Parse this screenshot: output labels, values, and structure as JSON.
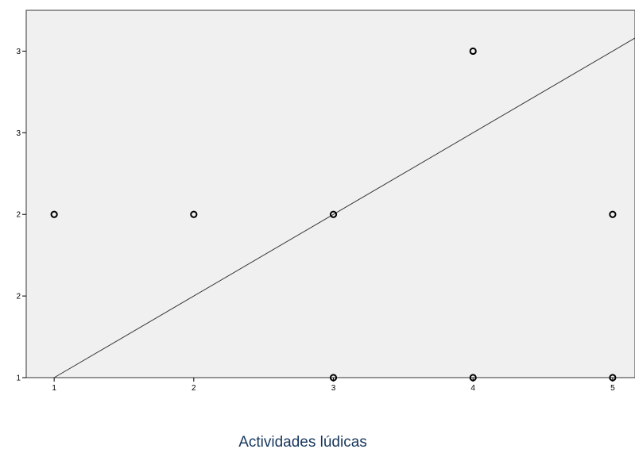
{
  "chart_data": {
    "type": "scatter",
    "xlabel": "Actividades lúdicas",
    "ylabel": "",
    "xlim": [
      0.8,
      5.16
    ],
    "ylim": [
      1,
      3.25
    ],
    "x_ticks": [
      1,
      2,
      3,
      4,
      5
    ],
    "x_tick_labels": [
      "1",
      "2",
      "3",
      "4",
      "5"
    ],
    "y_ticks": [
      1,
      1.5,
      2,
      2.5,
      3
    ],
    "y_tick_labels": [
      "1",
      "2",
      "2",
      "3",
      "3"
    ],
    "grid": false,
    "series": [
      {
        "points": [
          {
            "x": 1,
            "y": 2
          },
          {
            "x": 2,
            "y": 2
          },
          {
            "x": 3,
            "y": 2
          },
          {
            "x": 4,
            "y": 3
          },
          {
            "x": 5,
            "y": 2
          },
          {
            "x": 3,
            "y": 1
          },
          {
            "x": 4,
            "y": 1
          },
          {
            "x": 5,
            "y": 1
          }
        ]
      }
    ],
    "fit_line": {
      "x": [
        1,
        5.16
      ],
      "y": [
        1,
        3.08
      ]
    },
    "colors": {
      "plot_background": "#f0f0f0",
      "marker": "#000000",
      "fit_line": "#333333",
      "axis_title": "#17365d"
    }
  }
}
